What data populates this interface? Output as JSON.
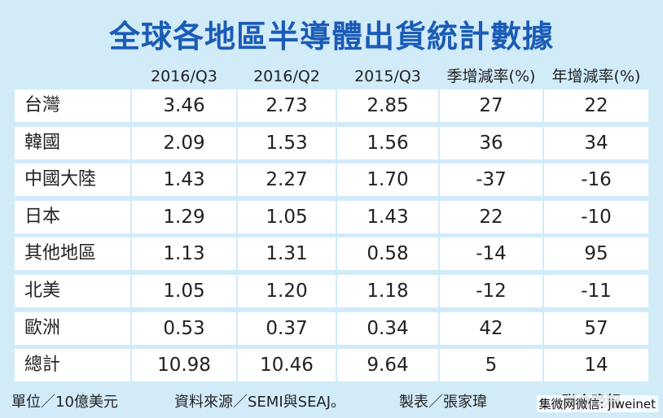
{
  "title": "全球各地區半導體出貨統計數據",
  "table": {
    "header": [
      "2016/Q3",
      "2016/Q2",
      "2015/Q3",
      "季增減率(%)",
      "年增減率(%)"
    ],
    "rows": [
      [
        "台灣",
        "3.46",
        "2.73",
        "2.85",
        "27",
        "22"
      ],
      [
        "韓國",
        "2.09",
        "1.53",
        "1.56",
        "36",
        "34"
      ],
      [
        "中國大陸",
        "1.43",
        "2.27",
        "1.70",
        "-37",
        "-16"
      ],
      [
        "日本",
        "1.29",
        "1.05",
        "1.43",
        "22",
        "-10"
      ],
      [
        "其他地區",
        "1.13",
        "1.31",
        "0.58",
        "-14",
        "95"
      ],
      [
        "北美",
        "1.05",
        "1.20",
        "1.18",
        "-12",
        "-11"
      ],
      [
        "歐洲",
        "0.53",
        "0.37",
        "0.34",
        "42",
        "57"
      ],
      [
        "總計",
        "10.98",
        "10.46",
        "9.64",
        "5",
        "14"
      ]
    ]
  },
  "footer": {
    "unit": "單位／10億美元",
    "source": "資料來源／SEMI與SEAJ。",
    "author": "製表／張家瑋",
    "publisher": "聯合晚報"
  },
  "watermark": "集微网微信: jiweinet"
}
